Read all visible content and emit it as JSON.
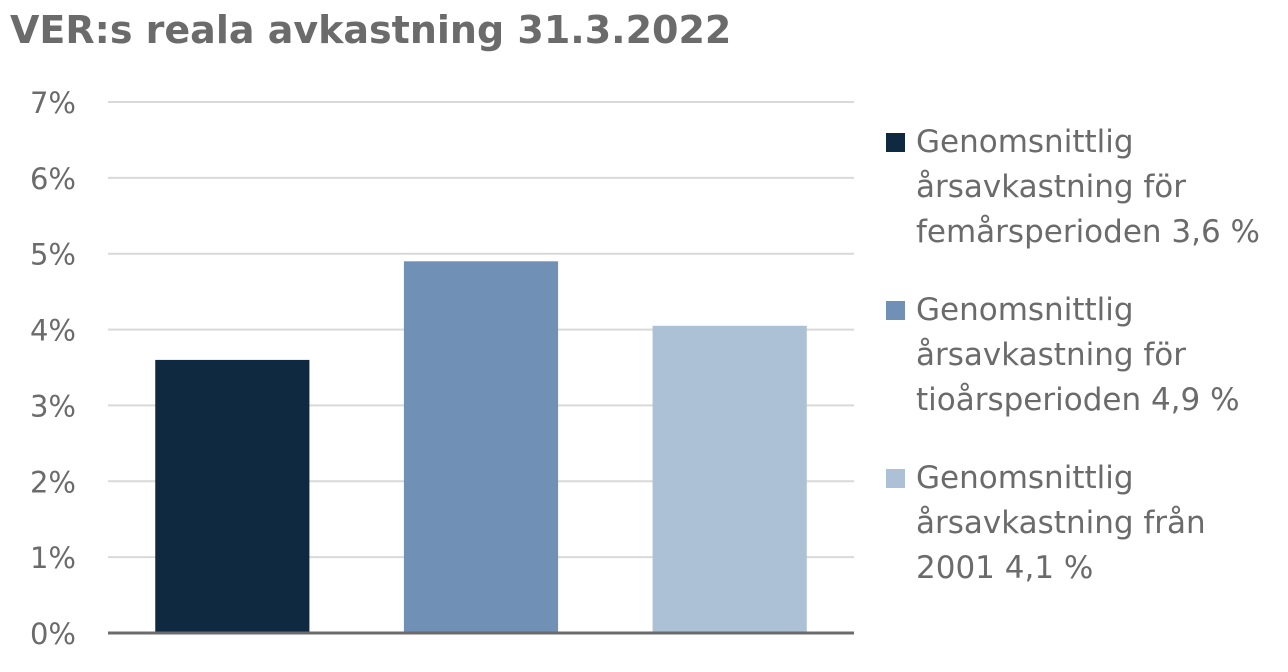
{
  "chart_data": {
    "type": "bar",
    "title": "VER:s reala avkastning 31.3.2022",
    "xlabel": "",
    "ylabel": "",
    "ylim": [
      0,
      7
    ],
    "yticks": [
      "0%",
      "1%",
      "2%",
      "3%",
      "4%",
      "5%",
      "6%",
      "7%"
    ],
    "grid": true,
    "legend_position": "right",
    "series": [
      {
        "name": "Genomsnittlig\nårsavkastning för\nfemårsperioden 3,6 %",
        "value": 3.6,
        "color": "#0f2a40"
      },
      {
        "name": "Genomsnittlig\nårsavkastning för\ntioårsperioden 4,9 %",
        "value": 4.9,
        "color": "#7091b5"
      },
      {
        "name": "Genomsnittlig\nårsavkastning från\n2001 4,1 %",
        "value": 4.05,
        "color": "#acc0d6"
      }
    ]
  }
}
